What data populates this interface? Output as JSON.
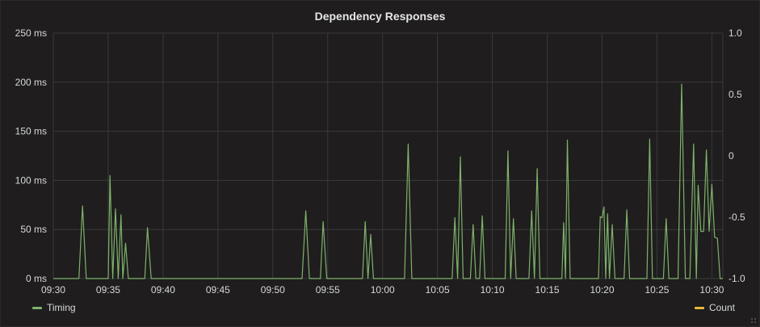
{
  "panel": {
    "title": "Dependency Responses"
  },
  "legend": [
    {
      "name": "Timing",
      "color": "#7eb26d"
    },
    {
      "name": "Count",
      "color": "#eab839"
    }
  ],
  "chart_data": {
    "type": "line",
    "title": "Dependency Responses",
    "x_unit": "time",
    "x_ticks": [
      "09:30",
      "09:35",
      "09:40",
      "09:45",
      "09:50",
      "09:55",
      "10:00",
      "10:05",
      "10:10",
      "10:15",
      "10:20",
      "10:25",
      "10:30"
    ],
    "y_left": {
      "ticks": [
        "0 ms",
        "50 ms",
        "100 ms",
        "150 ms",
        "200 ms",
        "250 ms"
      ],
      "ylim": [
        0,
        250
      ]
    },
    "y_right": {
      "ticks": [
        "-1.0",
        "-0.5",
        "0",
        "0.5",
        "1.0"
      ],
      "ylim": [
        -1.0,
        1.0
      ]
    },
    "grid": true,
    "legend_placement": "bottom",
    "x_range": [
      "09:30",
      "10:31"
    ],
    "series": [
      {
        "name": "Timing",
        "color": "#7eb26d",
        "axis": "left",
        "points": [
          [
            "09:30:00",
            0
          ],
          [
            "09:32:20",
            0
          ],
          [
            "09:32:40",
            74
          ],
          [
            "09:33:00",
            0
          ],
          [
            "09:35:00",
            0
          ],
          [
            "09:35:10",
            105
          ],
          [
            "09:35:25",
            0
          ],
          [
            "09:35:40",
            71
          ],
          [
            "09:35:55",
            0
          ],
          [
            "09:36:10",
            65
          ],
          [
            "09:36:20",
            0
          ],
          [
            "09:36:35",
            36
          ],
          [
            "09:36:50",
            0
          ],
          [
            "09:38:20",
            0
          ],
          [
            "09:38:35",
            52
          ],
          [
            "09:38:55",
            0
          ],
          [
            "09:52:40",
            0
          ],
          [
            "09:53:00",
            69
          ],
          [
            "09:53:20",
            0
          ],
          [
            "09:54:20",
            0
          ],
          [
            "09:54:35",
            58
          ],
          [
            "09:54:55",
            0
          ],
          [
            "09:58:10",
            0
          ],
          [
            "09:58:25",
            58
          ],
          [
            "09:58:40",
            0
          ],
          [
            "09:58:55",
            45
          ],
          [
            "09:59:10",
            0
          ],
          [
            "10:02:00",
            0
          ],
          [
            "10:02:20",
            137
          ],
          [
            "10:02:40",
            0
          ],
          [
            "10:06:20",
            0
          ],
          [
            "10:06:35",
            62
          ],
          [
            "10:06:50",
            0
          ],
          [
            "10:07:05",
            124
          ],
          [
            "10:07:20",
            0
          ],
          [
            "10:08:00",
            0
          ],
          [
            "10:08:15",
            55
          ],
          [
            "10:08:30",
            0
          ],
          [
            "10:08:50",
            0
          ],
          [
            "10:09:05",
            64
          ],
          [
            "10:09:20",
            0
          ],
          [
            "10:11:10",
            0
          ],
          [
            "10:11:25",
            130
          ],
          [
            "10:11:40",
            0
          ],
          [
            "10:11:55",
            61
          ],
          [
            "10:12:10",
            0
          ],
          [
            "10:13:20",
            0
          ],
          [
            "10:13:35",
            69
          ],
          [
            "10:13:50",
            0
          ],
          [
            "10:14:05",
            112
          ],
          [
            "10:14:20",
            0
          ],
          [
            "10:16:20",
            0
          ],
          [
            "10:16:30",
            57
          ],
          [
            "10:16:40",
            0
          ],
          [
            "10:16:50",
            141
          ],
          [
            "10:17:05",
            0
          ],
          [
            "10:19:40",
            0
          ],
          [
            "10:19:50",
            63
          ],
          [
            "10:20:00",
            62
          ],
          [
            "10:20:10",
            73
          ],
          [
            "10:20:20",
            0
          ],
          [
            "10:20:30",
            66
          ],
          [
            "10:20:40",
            0
          ],
          [
            "10:20:55",
            55
          ],
          [
            "10:21:10",
            0
          ],
          [
            "10:22:00",
            0
          ],
          [
            "10:22:15",
            70
          ],
          [
            "10:22:30",
            0
          ],
          [
            "10:24:05",
            0
          ],
          [
            "10:24:20",
            142
          ],
          [
            "10:24:35",
            0
          ],
          [
            "10:25:35",
            0
          ],
          [
            "10:25:50",
            61
          ],
          [
            "10:26:05",
            0
          ],
          [
            "10:26:55",
            0
          ],
          [
            "10:27:15",
            198
          ],
          [
            "10:27:35",
            0
          ],
          [
            "10:28:00",
            0
          ],
          [
            "10:28:20",
            137
          ],
          [
            "10:28:35",
            0
          ],
          [
            "10:28:45",
            95
          ],
          [
            "10:29:00",
            48
          ],
          [
            "10:29:15",
            48
          ],
          [
            "10:29:30",
            131
          ],
          [
            "10:29:45",
            48
          ],
          [
            "10:30:00",
            96
          ],
          [
            "10:30:15",
            42
          ],
          [
            "10:30:30",
            41
          ],
          [
            "10:30:45",
            0
          ],
          [
            "10:31:00",
            0
          ]
        ]
      },
      {
        "name": "Count",
        "color": "#eab839",
        "axis": "right",
        "points": []
      }
    ]
  }
}
